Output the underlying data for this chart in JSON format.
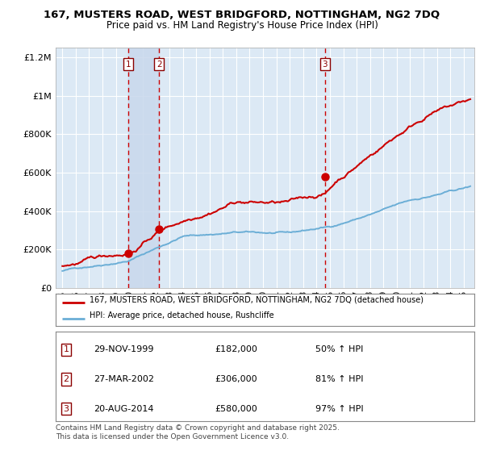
{
  "title": "167, MUSTERS ROAD, WEST BRIDGFORD, NOTTINGHAM, NG2 7DQ",
  "subtitle": "Price paid vs. HM Land Registry's House Price Index (HPI)",
  "background_color": "#dce9f5",
  "legend_line1": "167, MUSTERS ROAD, WEST BRIDGFORD, NOTTINGHAM, NG2 7DQ (detached house)",
  "legend_line2": "HPI: Average price, detached house, Rushcliffe",
  "footnote": "Contains HM Land Registry data © Crown copyright and database right 2025.\nThis data is licensed under the Open Government Licence v3.0.",
  "transactions": [
    {
      "num": 1,
      "date": "29-NOV-1999",
      "price": 182000,
      "pct": "50%",
      "direction": "↑",
      "year": 1999.91
    },
    {
      "num": 2,
      "date": "27-MAR-2002",
      "price": 306000,
      "pct": "81%",
      "direction": "↑",
      "year": 2002.24
    },
    {
      "num": 3,
      "date": "20-AUG-2014",
      "price": 580000,
      "pct": "97%",
      "direction": "↑",
      "year": 2014.63
    }
  ],
  "hpi_color": "#6baed6",
  "price_color": "#cc0000",
  "vline_color": "#cc0000",
  "highlight_color": "#c8d8ec",
  "ylim": [
    0,
    1250000
  ],
  "yticks": [
    0,
    200000,
    400000,
    600000,
    800000,
    1000000,
    1200000
  ],
  "xlim_start": 1994.5,
  "xlim_end": 2025.8,
  "xticks": [
    1995,
    1996,
    1997,
    1998,
    1999,
    2000,
    2001,
    2002,
    2003,
    2004,
    2005,
    2006,
    2007,
    2008,
    2009,
    2010,
    2011,
    2012,
    2013,
    2014,
    2015,
    2016,
    2017,
    2018,
    2019,
    2020,
    2021,
    2022,
    2023,
    2024,
    2025
  ]
}
